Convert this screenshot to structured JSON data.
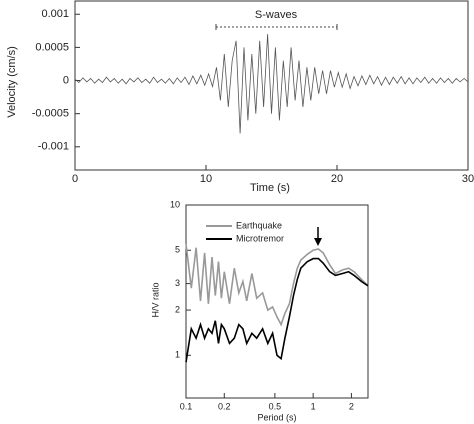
{
  "chart_data": [
    {
      "type": "line",
      "x_label": "Time (s)",
      "y_label": "Velocity (cm/s)",
      "annotation": "S-waves",
      "color": "#555555",
      "xlim": [
        0,
        30
      ],
      "ylim": [
        -0.00135,
        0.0012
      ],
      "xticks": [
        0,
        10,
        20,
        30
      ],
      "yticks": [
        0.001,
        0.0005,
        0,
        -0.0005,
        -0.001
      ],
      "x": [
        0,
        0.3,
        0.6,
        0.9,
        1.2,
        1.5,
        1.8,
        2.1,
        2.4,
        2.7,
        3,
        3.3,
        3.6,
        3.9,
        4.2,
        4.5,
        4.8,
        5.1,
        5.4,
        5.7,
        6,
        6.3,
        6.6,
        6.9,
        7.2,
        7.5,
        7.8,
        8.1,
        8.4,
        8.7,
        9,
        9.3,
        9.6,
        9.9,
        10.2,
        10.5,
        10.8,
        11.1,
        11.4,
        11.7,
        12,
        12.3,
        12.6,
        12.9,
        13.2,
        13.5,
        13.8,
        14.1,
        14.4,
        14.7,
        15,
        15.3,
        15.6,
        15.9,
        16.2,
        16.5,
        16.8,
        17.1,
        17.4,
        17.7,
        18,
        18.3,
        18.6,
        18.9,
        19.2,
        19.5,
        19.8,
        20.1,
        20.4,
        20.7,
        21,
        21.3,
        21.6,
        21.9,
        22.2,
        22.5,
        22.8,
        23.1,
        23.4,
        23.7,
        24,
        24.3,
        24.6,
        24.9,
        25.2,
        25.5,
        25.8,
        26.1,
        26.4,
        26.7,
        27,
        27.3,
        27.6,
        27.9,
        28.2,
        28.5,
        28.8,
        29.1,
        29.4,
        29.7,
        30
      ],
      "values": [
        2e-05,
        -3e-05,
        4e-05,
        -2e-05,
        3e-05,
        -4e-05,
        2e-05,
        -3e-05,
        5e-05,
        -2e-05,
        3e-05,
        -4e-05,
        2e-05,
        -5e-05,
        3e-05,
        -2e-05,
        4e-05,
        -3e-05,
        2e-05,
        -4e-05,
        5e-05,
        -3e-05,
        2e-05,
        -4e-05,
        3e-05,
        -5e-05,
        4e-05,
        -3e-05,
        5e-05,
        -6e-05,
        7e-05,
        -5e-05,
        8e-05,
        -7e-05,
        0.0001,
        -9e-05,
        0.0002,
        -0.0003,
        0.0004,
        -0.0004,
        0.0003,
        0.0006,
        -0.0008,
        0.0005,
        -0.0006,
        0.0004,
        -0.0005,
        0.0006,
        -0.0004,
        0.0007,
        -0.0005,
        0.0005,
        -0.0006,
        0.0003,
        -0.0004,
        0.0005,
        -0.0003,
        0.0003,
        -0.0004,
        0.0002,
        -0.0003,
        0.0002,
        -0.0002,
        0.00015,
        -0.0002,
        0.00015,
        -0.0001,
        0.00012,
        -0.0001,
        0.0001,
        -0.00012,
        6e-05,
        -8e-05,
        7e-05,
        -6e-05,
        8e-05,
        -5e-05,
        6e-05,
        -7e-05,
        5e-05,
        -6e-05,
        5e-05,
        -4e-05,
        6e-05,
        -5e-05,
        4e-05,
        -5e-05,
        4e-05,
        -3e-05,
        5e-05,
        -4e-05,
        3e-05,
        -4e-05,
        4e-05,
        -3e-05,
        3e-05,
        -4e-05,
        3e-05,
        -2e-05,
        3e-05,
        -2e-05
      ]
    },
    {
      "type": "line",
      "x_label": "Period (s)",
      "y_label": "H/V ratio",
      "xscale": "log",
      "yscale": "log",
      "legend": "upper left",
      "xlim": [
        0.1,
        2.7
      ],
      "ylim": [
        0.52,
        10
      ],
      "xticks": [
        0.1,
        0.2,
        0.5,
        1,
        2
      ],
      "yticks": [
        1,
        2,
        3,
        5,
        10
      ],
      "x": [
        0.1,
        0.11,
        0.12,
        0.13,
        0.14,
        0.15,
        0.16,
        0.17,
        0.18,
        0.19,
        0.2,
        0.22,
        0.24,
        0.26,
        0.28,
        0.3,
        0.33,
        0.36,
        0.4,
        0.44,
        0.48,
        0.52,
        0.56,
        0.6,
        0.65,
        0.7,
        0.75,
        0.8,
        0.9,
        1,
        1.1,
        1.2,
        1.35,
        1.5,
        1.7,
        1.9,
        2.1,
        2.4,
        2.7
      ],
      "series": [
        {
          "name": "Earthquake",
          "color": "#999999",
          "values": [
            5.5,
            2.8,
            5.2,
            2.3,
            4.8,
            2.2,
            4.5,
            2.5,
            4.2,
            2.4,
            3.6,
            2.2,
            3.8,
            2.6,
            3.1,
            2.3,
            3.5,
            2.4,
            2.6,
            2.0,
            2.1,
            1.8,
            1.6,
            1.9,
            2.2,
            3.0,
            3.8,
            4.3,
            4.7,
            5.0,
            5.1,
            4.8,
            4.0,
            3.5,
            3.7,
            3.8,
            3.6,
            3.2,
            2.9
          ]
        },
        {
          "name": "Microtremor",
          "color": "#000000",
          "values": [
            0.9,
            1.5,
            1.3,
            1.6,
            1.3,
            1.5,
            1.4,
            1.7,
            1.2,
            1.6,
            1.5,
            1.2,
            1.3,
            1.6,
            1.5,
            1.2,
            1.4,
            1.3,
            1.5,
            1.2,
            1.4,
            1.0,
            0.95,
            1.3,
            1.8,
            2.5,
            3.2,
            3.8,
            4.2,
            4.4,
            4.4,
            4.1,
            3.6,
            3.4,
            3.5,
            3.6,
            3.4,
            3.1,
            2.9
          ]
        }
      ]
    }
  ]
}
